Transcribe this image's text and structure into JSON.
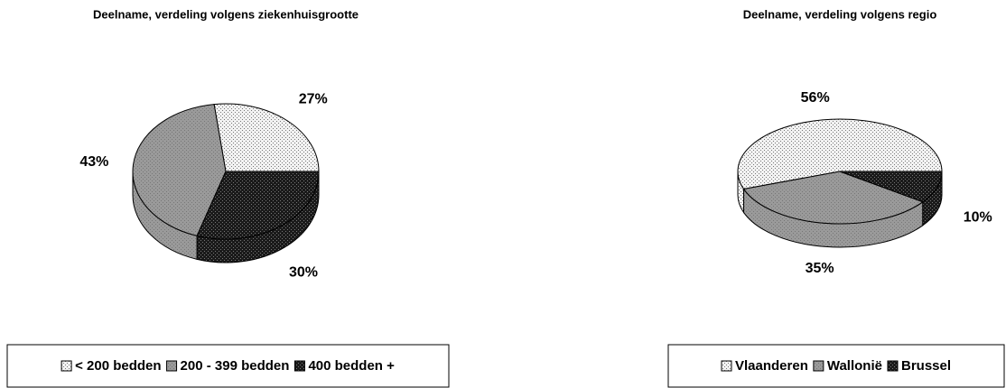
{
  "chart_data": [
    {
      "type": "pie",
      "title": "Deelname, verdeling volgens ziekenhuisgrootte",
      "categories": [
        "< 200 bedden",
        "200 - 399 bedden",
        "400 bedden +"
      ],
      "values": [
        27,
        43,
        30
      ],
      "value_labels": [
        "27%",
        "43%",
        "30%"
      ],
      "colors": [
        "#f2f2f2",
        "#9a9a9a",
        "#1a1a1a"
      ],
      "legend": "bottom"
    },
    {
      "type": "pie",
      "title": "Deelname, verdeling volgens regio",
      "categories": [
        "Vlaanderen",
        "Wallonië",
        "Brussel"
      ],
      "values": [
        56,
        35,
        10
      ],
      "value_labels": [
        "56%",
        "35%",
        "10%"
      ],
      "colors": [
        "#f2f2f2",
        "#9a9a9a",
        "#1a1a1a"
      ],
      "legend": "bottom"
    }
  ]
}
